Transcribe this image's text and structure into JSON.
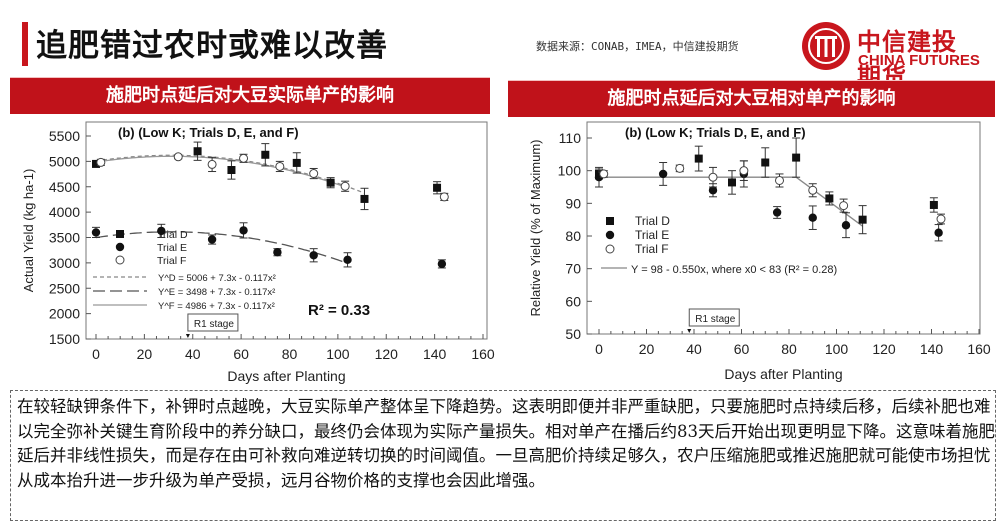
{
  "header": {
    "title": "追肥错过农时或难以改善",
    "source": "数据来源：CONAB，IMEA，中信建投期货",
    "logo_cn": "中信建投期货",
    "logo_en": "CHINA FUTURES"
  },
  "panels": {
    "left_title": "施肥时点延后对大豆实际单产的影响",
    "right_title": "施肥时点延后对大豆相对单产的影响"
  },
  "colors": {
    "brand": "#c8161d",
    "header_bg": "#c0121a"
  },
  "chart_data": [
    {
      "type": "scatter",
      "title": "(b) (Low K; Trials D, E, and F)",
      "xlabel": "Days after Planting",
      "ylabel": "Actual Yield (kg ha-1)",
      "xlim": [
        0,
        160
      ],
      "ylim": [
        1500,
        5500
      ],
      "xticks": [
        0,
        20,
        40,
        60,
        80,
        100,
        120,
        140,
        160
      ],
      "yticks": [
        1500,
        2000,
        2500,
        3000,
        3500,
        4000,
        4500,
        5000,
        5500
      ],
      "annotation": "R1 stage",
      "annotation_x": 38,
      "r2": "R² = 0.33",
      "series": [
        {
          "name": "Trial D",
          "marker": "square",
          "points": [
            [
              0,
              4950,
              50
            ],
            [
              42,
              5200,
              180
            ],
            [
              56,
              4830,
              180
            ],
            [
              70,
              5130,
              220
            ],
            [
              83,
              4970,
              200
            ],
            [
              97,
              4580,
              100
            ],
            [
              111,
              4260,
              210
            ],
            [
              141,
              4480,
              120
            ]
          ]
        },
        {
          "name": "Trial E",
          "marker": "circle",
          "points": [
            [
              0,
              3600,
              100
            ],
            [
              27,
              3630,
              130
            ],
            [
              48,
              3460,
              90
            ],
            [
              61,
              3640,
              150
            ],
            [
              75,
              3210,
              70
            ],
            [
              90,
              3150,
              130
            ],
            [
              104,
              3060,
              140
            ],
            [
              143,
              2980,
              80
            ]
          ]
        },
        {
          "name": "Trial F",
          "marker": "open-circle",
          "points": [
            [
              2,
              4980,
              60
            ],
            [
              34,
              5090,
              40
            ],
            [
              48,
              4940,
              140
            ],
            [
              61,
              5060,
              80
            ],
            [
              76,
              4900,
              100
            ],
            [
              90,
              4760,
              100
            ],
            [
              103,
              4510,
              100
            ],
            [
              144,
              4300,
              70
            ]
          ]
        }
      ],
      "fits": [
        {
          "label": "Y^D = 5006 + 7.3x - 0.117x²",
          "a": 5006,
          "b": 7.3,
          "c": -0.117,
          "xmax": 111,
          "style": "short-dash"
        },
        {
          "label": "Y^E = 3498 + 7.3x - 0.117x²",
          "a": 3498,
          "b": 7.3,
          "c": -0.117,
          "xmax": 104,
          "style": "long-dash"
        },
        {
          "label": "Y^F = 4986 + 7.3x - 0.117x²",
          "a": 4986,
          "b": 7.3,
          "c": -0.117,
          "xmax": 103,
          "style": "solid"
        }
      ]
    },
    {
      "type": "scatter",
      "title": "(b)  (Low K; Trials D, E, and F)",
      "xlabel": "Days after Planting",
      "ylabel": "Relative Yield (% of Maximum)",
      "xlim": [
        0,
        160
      ],
      "ylim": [
        50,
        110
      ],
      "xticks": [
        0,
        20,
        40,
        60,
        80,
        100,
        120,
        140,
        160
      ],
      "yticks": [
        50,
        60,
        70,
        80,
        90,
        100,
        110
      ],
      "annotation": "R1 stage",
      "annotation_x": 38,
      "series": [
        {
          "name": "Trial D",
          "marker": "square",
          "points": [
            [
              0,
              99,
              1.5
            ],
            [
              42,
              103.7,
              3.8
            ],
            [
              56,
              96.4,
              3.6
            ],
            [
              70,
              102.5,
              4.5
            ],
            [
              83,
              104,
              6
            ],
            [
              97,
              91.5,
              2
            ],
            [
              111,
              85,
              4.3
            ],
            [
              141,
              89.5,
              2.2
            ]
          ]
        },
        {
          "name": "Trial E",
          "marker": "circle",
          "points": [
            [
              0,
              98,
              3
            ],
            [
              27,
              99,
              3.5
            ],
            [
              48,
              94,
              2
            ],
            [
              61,
              99,
              4
            ],
            [
              75,
              87.2,
              1.8
            ],
            [
              90,
              85.6,
              3.6
            ],
            [
              104,
              83.3,
              3.8
            ],
            [
              143,
              81,
              2.5
            ]
          ]
        },
        {
          "name": "Trial F",
          "marker": "open-circle",
          "points": [
            [
              2,
              99,
              1
            ],
            [
              34,
              100.7,
              1
            ],
            [
              48,
              98,
              3
            ],
            [
              61,
              100,
              3
            ],
            [
              76,
              97,
              2
            ],
            [
              90,
              94,
              2
            ],
            [
              103,
              89.3,
              2
            ],
            [
              144,
              85.2,
              1.5
            ]
          ]
        }
      ],
      "fit": {
        "label": "Y = 98 - 0.550x, where x0 < 83 (R² = 0.28)",
        "points": [
          [
            0,
            98
          ],
          [
            83,
            98
          ],
          [
            111,
            83
          ]
        ]
      }
    }
  ],
  "commentary": "在较轻缺钾条件下，补钾时点越晚，大豆实际单产整体呈下降趋势。这表明即便并非严重缺肥，只要施肥时点持续后移，后续补肥也难以完全弥补关键生育阶段中的养分缺口，最终仍会体现为实际产量损失。相对单产在播后约83天后开始出现更明显下降。这意味着施肥延后并非线性损失，而是存在由可补救向难逆转切换的时间阈值。一旦高肥价持续足够久，农户压缩施肥或推迟施肥就可能使市场担忧从成本抬升进一步升级为单产受损，远月谷物价格的支撑也会因此增强。"
}
